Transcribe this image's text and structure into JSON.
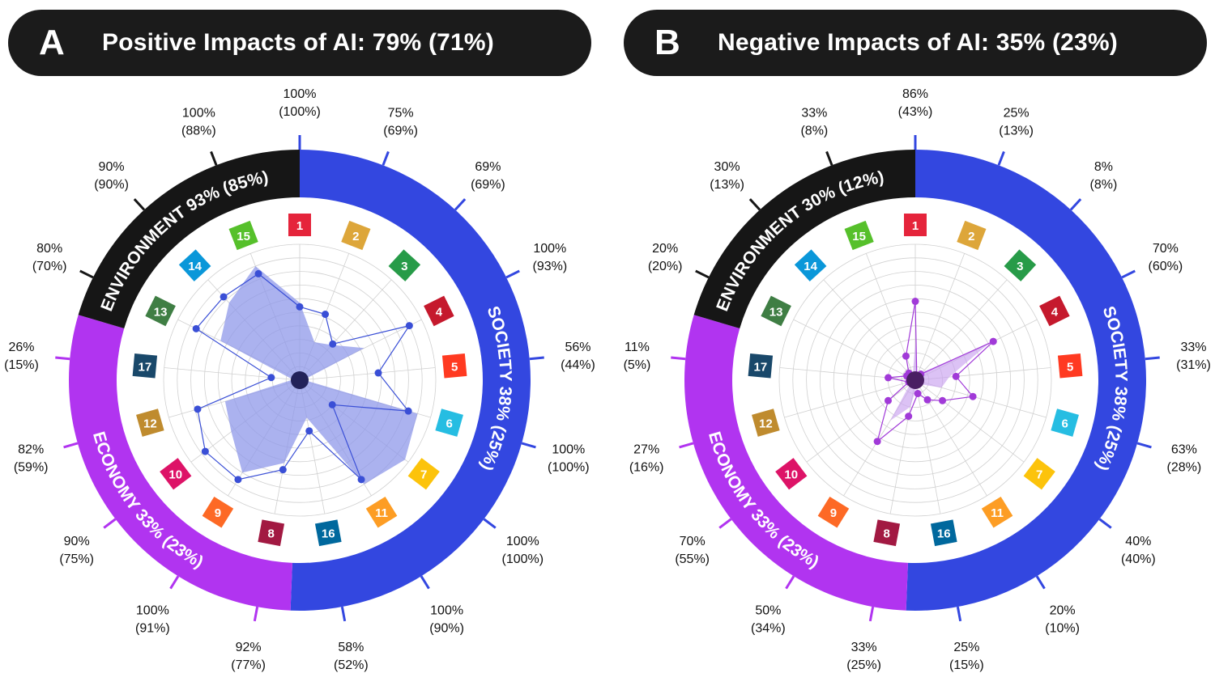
{
  "panels": [
    {
      "letter": "A",
      "title": "Positive Impacts of AI: 79% (71%)"
    },
    {
      "letter": "B",
      "title": "Negative Impacts of AI: 35% (23%)"
    }
  ],
  "sdg_colors": {
    "1": "#e5243b",
    "2": "#dda63a",
    "3": "#279b48",
    "4": "#c5192d",
    "5": "#ff3a21",
    "6": "#26bde2",
    "7": "#fcc30b",
    "8": "#a21942",
    "9": "#fd6925",
    "10": "#dd1367",
    "11": "#fd9d24",
    "12": "#bf8b2e",
    "13": "#3f7e44",
    "14": "#0a97d9",
    "15": "#56c02b",
    "16": "#00689d",
    "17": "#19486a"
  },
  "group_colors": {
    "society": "#3347e0",
    "economy": "#b134f0",
    "environment": "#161616"
  },
  "chart_data": [
    {
      "type": "radar",
      "panel": "A",
      "groups": [
        {
          "key": "society",
          "label": "SOCIETY 38% (25%)"
        },
        {
          "key": "economy",
          "label": "ECONOMY 33% (23%)"
        },
        {
          "key": "environment",
          "label": "ENVIRONMENT 93% (85%)"
        }
      ],
      "sdg_order": [
        "1",
        "2",
        "3",
        "4",
        "5",
        "6",
        "7",
        "11",
        "16",
        "8",
        "9",
        "10",
        "12",
        "17",
        "13",
        "14",
        "15"
      ],
      "tick_labels": [
        [
          "100%",
          "(100%)"
        ],
        [
          "75%",
          "(69%)"
        ],
        [
          "69%",
          "(69%)"
        ],
        [
          "100%",
          "(93%)"
        ],
        [
          "56%",
          "(44%)"
        ],
        [
          "100%",
          "(100%)"
        ],
        [
          "100%",
          "(100%)"
        ],
        [
          "100%",
          "(90%)"
        ],
        [
          "58%",
          "(52%)"
        ],
        [
          "92%",
          "(77%)"
        ],
        [
          "100%",
          "(91%)"
        ],
        [
          "90%",
          "(75%)"
        ],
        [
          "82%",
          "(59%)"
        ],
        [
          "26%",
          "(15%)"
        ],
        [
          "80%",
          "(70%)"
        ],
        [
          "90%",
          "(90%)"
        ],
        [
          "100%",
          "(88%)"
        ]
      ],
      "line_values": [
        0.54,
        0.52,
        0.36,
        0.9,
        0.58,
        0.83,
        0.3,
        0.86,
        0.38,
        0.67,
        0.86,
        0.87,
        0.78,
        0.21,
        0.85,
        0.83,
        0.84
      ],
      "area_values": [
        0.57,
        0.3,
        0.35,
        0.53,
        0.03,
        0.9,
        0.97,
        0.9,
        0.28,
        0.62,
        0.8,
        0.63,
        0.57,
        0.05,
        0.65,
        0.77,
        0.9
      ],
      "line_color": "#3a4fd6",
      "area_color": "#8f98ea"
    },
    {
      "type": "radar",
      "panel": "B",
      "groups": [
        {
          "key": "society",
          "label": "SOCIETY 38% (25%)"
        },
        {
          "key": "economy",
          "label": "ECONOMY 33% (23%)"
        },
        {
          "key": "environment",
          "label": "ENVIRONMENT 30% (12%)"
        }
      ],
      "sdg_order": [
        "1",
        "2",
        "3",
        "4",
        "5",
        "6",
        "7",
        "11",
        "16",
        "8",
        "9",
        "10",
        "12",
        "17",
        "13",
        "14",
        "15"
      ],
      "tick_labels": [
        [
          "86%",
          "(43%)"
        ],
        [
          "25%",
          "(13%)"
        ],
        [
          "8%",
          "(8%)"
        ],
        [
          "70%",
          "(60%)"
        ],
        [
          "33%",
          "(31%)"
        ],
        [
          "63%",
          "(28%)"
        ],
        [
          "40%",
          "(40%)"
        ],
        [
          "20%",
          "(10%)"
        ],
        [
          "25%",
          "(15%)"
        ],
        [
          "33%",
          "(25%)"
        ],
        [
          "50%",
          "(34%)"
        ],
        [
          "70%",
          "(55%)"
        ],
        [
          "27%",
          "(16%)"
        ],
        [
          "11%",
          "(5%)"
        ],
        [
          "20%",
          "(20%)"
        ],
        [
          "30%",
          "(13%)"
        ],
        [
          "33%",
          "(8%)"
        ]
      ],
      "line_values": [
        0.58,
        0.03,
        0.06,
        0.64,
        0.3,
        0.44,
        0.25,
        0.17,
        0.1,
        0.27,
        0.53,
        0.25,
        0.05,
        0.2,
        0.07,
        0.07,
        0.19
      ],
      "area_values": [
        0.27,
        0.03,
        0.08,
        0.6,
        0.25,
        0.2,
        0.05,
        0.05,
        0.05,
        0.2,
        0.35,
        0.05,
        0.05,
        0.05,
        0.05,
        0.05,
        0.05
      ],
      "line_color": "#a13ad8",
      "area_color": "#c9a2ef"
    }
  ]
}
